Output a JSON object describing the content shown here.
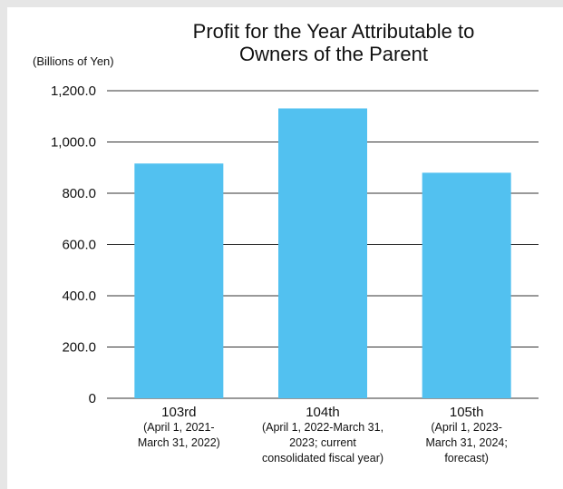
{
  "chart_data": {
    "type": "bar",
    "title_lines": [
      "Profit for the Year Attributable to",
      "Owners of the Parent"
    ],
    "unit_label": "(Billions of Yen)",
    "categories": [
      "103rd",
      "104th",
      "105th"
    ],
    "category_subtitles": [
      [
        "(April 1, 2021-",
        "March 31, 2022)"
      ],
      [
        "(April 1, 2022-March 31,",
        "2023; current",
        "consolidated fiscal year)"
      ],
      [
        "(April 1, 2023-",
        "March 31, 2024;",
        "forecast)"
      ]
    ],
    "values": [
      916.0,
      1131.0,
      880.0
    ],
    "ylim": [
      0,
      1200
    ],
    "yticks": [
      0,
      200,
      400,
      600,
      800,
      1000,
      1200
    ],
    "ytick_labels": [
      "0",
      "200.0",
      "400.0",
      "600.0",
      "800.0",
      "1,000.0",
      "1,200.0"
    ],
    "grid": true,
    "bar_color": "#52c1f0",
    "grid_color": "#333333"
  }
}
